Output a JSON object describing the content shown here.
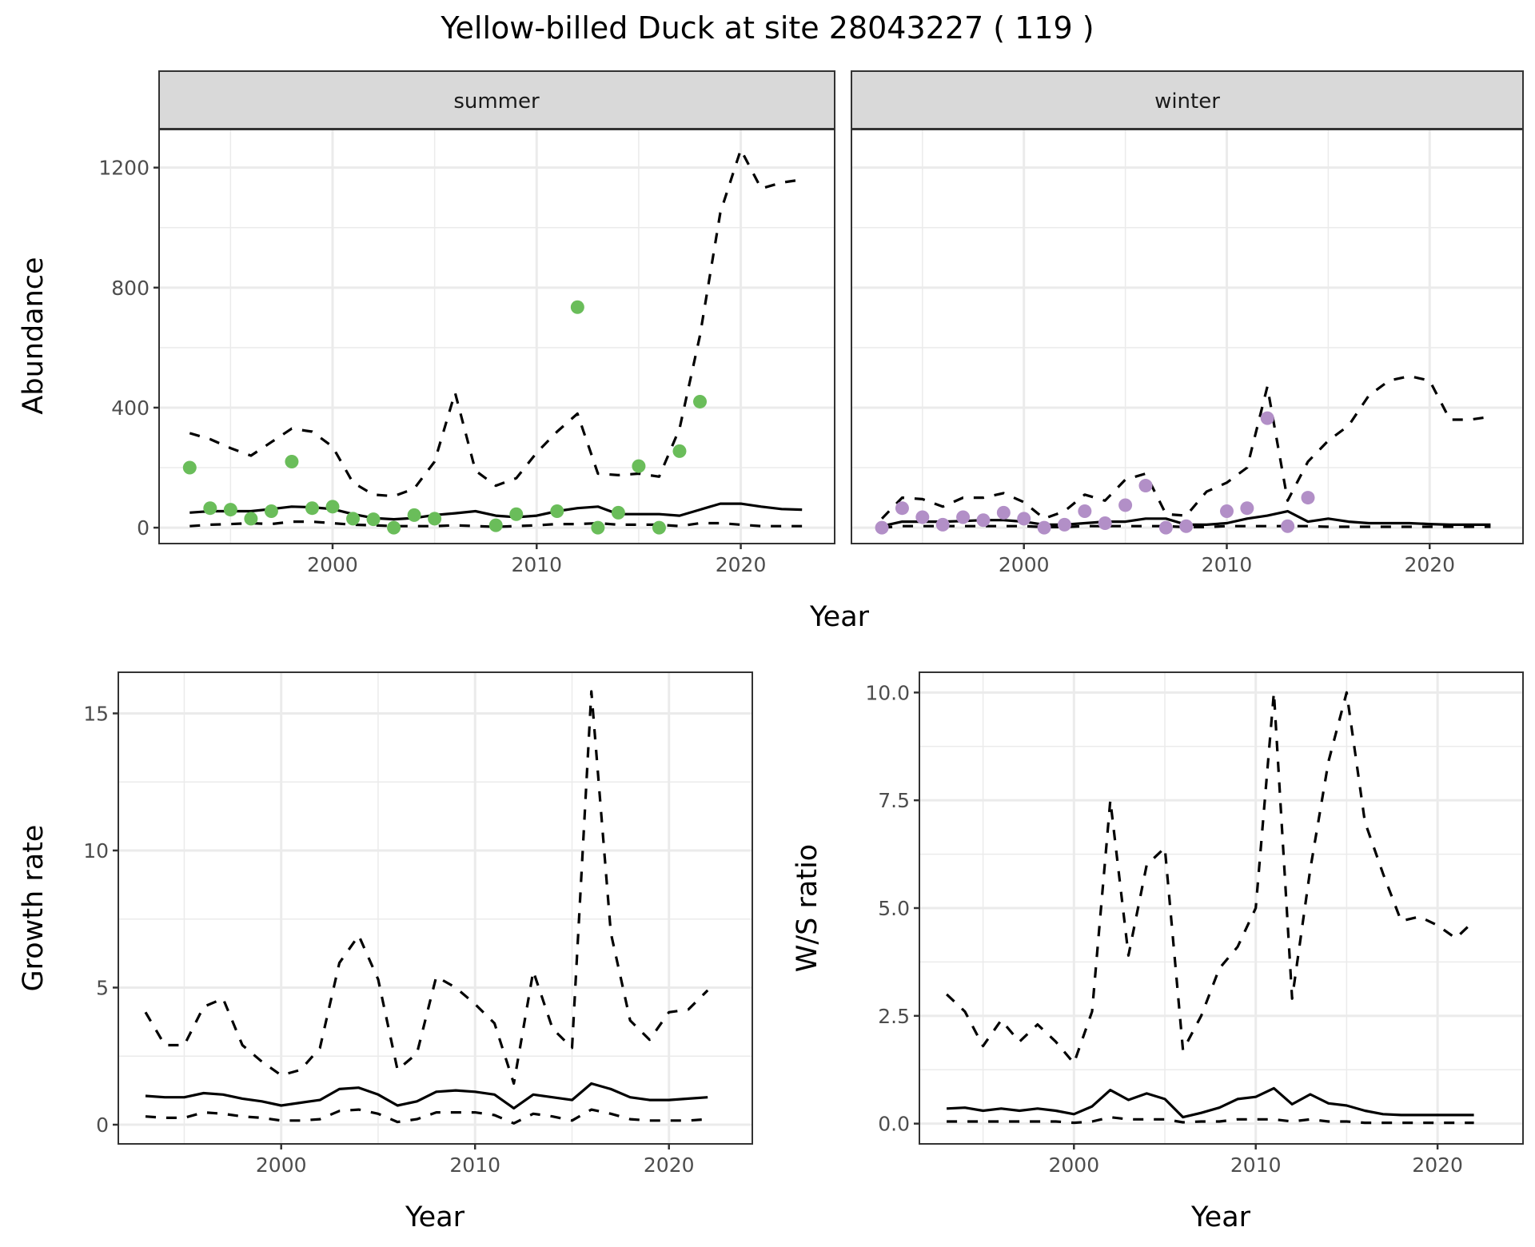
{
  "title": "Yellow-billed Duck at site 28043227 ( 119 )",
  "colors": {
    "summer_points": "#6abd5a",
    "winter_points": "#b28fc7",
    "lines": "#000000",
    "strip_bg": "#d9d9d9",
    "grid": "#ebebeb"
  },
  "chart_data": [
    {
      "type": "line",
      "facet": "summer",
      "xlabel": "Year",
      "ylabel": "Abundance",
      "xlim": [
        1991.5,
        2024.6
      ],
      "ylim": [
        -53,
        1327
      ],
      "xticks": [
        "2000",
        "2010",
        "2020"
      ],
      "yticks": [
        "0",
        "400",
        "800",
        "1200"
      ],
      "grid": true,
      "points": {
        "x": [
          1993,
          1994,
          1995,
          1996,
          1997,
          1998,
          1999,
          2000,
          2001,
          2002,
          2003,
          2004,
          2005,
          2008,
          2009,
          2011,
          2012,
          2013,
          2014,
          2015,
          2016,
          2017,
          2018
        ],
        "y": [
          200,
          65,
          60,
          30,
          55,
          220,
          65,
          70,
          30,
          28,
          0,
          42,
          30,
          8,
          45,
          55,
          735,
          0,
          50,
          205,
          0,
          255,
          420
        ]
      },
      "x": [
        1993,
        1994,
        1995,
        1996,
        1997,
        1998,
        1999,
        2000,
        2001,
        2002,
        2003,
        2004,
        2005,
        2006,
        2007,
        2008,
        2009,
        2010,
        2011,
        2012,
        2013,
        2014,
        2015,
        2016,
        2017,
        2018,
        2019,
        2020,
        2021,
        2022,
        2023
      ],
      "series": [
        {
          "style": "solid",
          "values": [
            50,
            55,
            55,
            55,
            62,
            70,
            68,
            62,
            45,
            32,
            28,
            32,
            42,
            48,
            55,
            40,
            35,
            40,
            55,
            65,
            70,
            45,
            45,
            45,
            40,
            60,
            80,
            80,
            70,
            62,
            60
          ]
        },
        {
          "style": "dashed-upper",
          "values": [
            315,
            295,
            265,
            240,
            285,
            330,
            320,
            270,
            150,
            110,
            105,
            130,
            220,
            450,
            190,
            140,
            165,
            250,
            320,
            380,
            180,
            175,
            180,
            170,
            330,
            640,
            1050,
            1260,
            1130,
            1150,
            1160
          ]
        },
        {
          "style": "dashed-lower",
          "values": [
            5,
            10,
            12,
            15,
            12,
            20,
            20,
            15,
            10,
            8,
            5,
            5,
            5,
            8,
            5,
            3,
            5,
            8,
            12,
            12,
            15,
            10,
            10,
            10,
            5,
            15,
            15,
            10,
            5,
            5,
            5
          ]
        }
      ]
    },
    {
      "type": "line",
      "facet": "winter",
      "xlabel": "Year",
      "ylabel": "Abundance",
      "xlim": [
        1991.5,
        2024.6
      ],
      "ylim": [
        -53,
        1327
      ],
      "xticks": [
        "2000",
        "2010",
        "2020"
      ],
      "yticks": [
        "0",
        "400",
        "800",
        "1200"
      ],
      "grid": true,
      "points": {
        "x": [
          1993,
          1994,
          1995,
          1996,
          1997,
          1998,
          1999,
          2000,
          2001,
          2002,
          2003,
          2004,
          2005,
          2006,
          2007,
          2008,
          2010,
          2011,
          2012,
          2013,
          2014
        ],
        "y": [
          0,
          65,
          35,
          10,
          35,
          25,
          50,
          30,
          0,
          10,
          55,
          15,
          75,
          140,
          0,
          5,
          55,
          65,
          365,
          5,
          100
        ]
      },
      "x": [
        1993,
        1994,
        1995,
        1996,
        1997,
        1998,
        1999,
        2000,
        2001,
        2002,
        2003,
        2004,
        2005,
        2006,
        2007,
        2008,
        2009,
        2010,
        2011,
        2012,
        2013,
        2014,
        2015,
        2016,
        2017,
        2018,
        2019,
        2020,
        2021,
        2022,
        2023
      ],
      "series": [
        {
          "style": "solid",
          "values": [
            5,
            20,
            20,
            20,
            22,
            25,
            25,
            20,
            10,
            10,
            15,
            20,
            20,
            30,
            30,
            10,
            10,
            15,
            30,
            40,
            55,
            20,
            30,
            20,
            15,
            15,
            15,
            12,
            10,
            10,
            10
          ]
        },
        {
          "style": "dashed-upper",
          "values": [
            30,
            100,
            95,
            70,
            100,
            100,
            115,
            85,
            30,
            55,
            110,
            90,
            160,
            180,
            45,
            40,
            120,
            150,
            200,
            470,
            90,
            220,
            290,
            340,
            440,
            490,
            505,
            490,
            360,
            360,
            370
          ]
        },
        {
          "style": "dashed-lower",
          "values": [
            0,
            5,
            5,
            5,
            5,
            5,
            5,
            5,
            2,
            2,
            5,
            5,
            5,
            5,
            5,
            2,
            2,
            5,
            5,
            5,
            5,
            5,
            3,
            3,
            3,
            3,
            3,
            3,
            3,
            3,
            3
          ]
        }
      ]
    },
    {
      "type": "line",
      "xlabel": "Year",
      "ylabel": "Growth rate",
      "xlim": [
        1991.6,
        2024.3
      ],
      "ylim": [
        -0.7,
        16.5
      ],
      "xticks": [
        "2000",
        "2010",
        "2020"
      ],
      "yticks": [
        "0",
        "5",
        "10",
        "15"
      ],
      "grid": true,
      "x": [
        1993,
        1994,
        1995,
        1996,
        1997,
        1998,
        1999,
        2000,
        2001,
        2002,
        2003,
        2004,
        2005,
        2006,
        2007,
        2008,
        2009,
        2010,
        2011,
        2012,
        2013,
        2014,
        2015,
        2016,
        2017,
        2018,
        2019,
        2020,
        2021,
        2022
      ],
      "series": [
        {
          "style": "solid",
          "values": [
            1.05,
            1.0,
            1.0,
            1.15,
            1.1,
            0.95,
            0.85,
            0.7,
            0.8,
            0.9,
            1.3,
            1.35,
            1.1,
            0.7,
            0.85,
            1.2,
            1.25,
            1.2,
            1.1,
            0.6,
            1.1,
            1.0,
            0.9,
            1.5,
            1.3,
            1.0,
            0.9,
            0.9,
            0.95,
            1.0
          ]
        },
        {
          "style": "dashed-upper",
          "values": [
            4.1,
            2.9,
            2.9,
            4.3,
            4.6,
            2.9,
            2.3,
            1.8,
            2.0,
            2.8,
            5.9,
            6.9,
            5.3,
            2.0,
            2.6,
            5.4,
            5.0,
            4.4,
            3.7,
            1.5,
            5.6,
            3.5,
            2.8,
            15.8,
            7.0,
            3.8,
            3.1,
            4.1,
            4.2,
            4.9
          ]
        },
        {
          "style": "dashed-lower",
          "values": [
            0.3,
            0.25,
            0.25,
            0.45,
            0.4,
            0.3,
            0.25,
            0.15,
            0.15,
            0.2,
            0.5,
            0.55,
            0.4,
            0.1,
            0.2,
            0.45,
            0.45,
            0.45,
            0.35,
            0.05,
            0.4,
            0.3,
            0.15,
            0.55,
            0.4,
            0.2,
            0.15,
            0.15,
            0.15,
            0.2
          ]
        }
      ]
    },
    {
      "type": "line",
      "xlabel": "Year",
      "ylabel": "W/S ratio",
      "xlim": [
        1991.5,
        2024.7
      ],
      "ylim": [
        -0.47,
        10.47
      ],
      "xticks": [
        "2000",
        "2010",
        "2020"
      ],
      "yticks": [
        "0.0",
        "2.5",
        "5.0",
        "7.5",
        "10.0"
      ],
      "grid": true,
      "x": [
        1993,
        1994,
        1995,
        1996,
        1997,
        1998,
        1999,
        2000,
        2001,
        2002,
        2003,
        2004,
        2005,
        2006,
        2007,
        2008,
        2009,
        2010,
        2011,
        2012,
        2013,
        2014,
        2015,
        2016,
        2017,
        2018,
        2019,
        2020,
        2021,
        2022
      ],
      "series": [
        {
          "style": "solid",
          "values": [
            0.35,
            0.37,
            0.3,
            0.35,
            0.3,
            0.35,
            0.3,
            0.22,
            0.4,
            0.78,
            0.55,
            0.7,
            0.57,
            0.15,
            0.25,
            0.37,
            0.57,
            0.62,
            0.82,
            0.45,
            0.68,
            0.47,
            0.42,
            0.3,
            0.22,
            0.2,
            0.2,
            0.2,
            0.2,
            0.2
          ]
        },
        {
          "style": "dashed-upper",
          "values": [
            3.0,
            2.6,
            1.8,
            2.4,
            1.9,
            2.3,
            1.9,
            1.4,
            2.6,
            7.5,
            3.9,
            6.0,
            6.4,
            1.7,
            2.5,
            3.6,
            4.1,
            5.0,
            10.0,
            2.9,
            5.9,
            8.4,
            10.0,
            7.0,
            5.8,
            4.7,
            4.8,
            4.6,
            4.3,
            4.7
          ]
        },
        {
          "style": "dashed-lower",
          "values": [
            0.05,
            0.05,
            0.05,
            0.05,
            0.05,
            0.05,
            0.05,
            0.02,
            0.05,
            0.15,
            0.1,
            0.1,
            0.1,
            0.03,
            0.05,
            0.05,
            0.1,
            0.1,
            0.1,
            0.05,
            0.1,
            0.05,
            0.05,
            0.02,
            0.02,
            0.02,
            0.02,
            0.02,
            0.02,
            0.02
          ]
        }
      ]
    }
  ]
}
